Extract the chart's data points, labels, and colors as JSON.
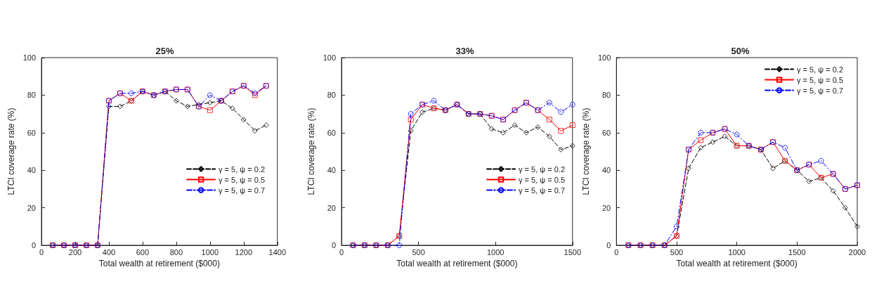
{
  "chart_data": [
    {
      "type": "line",
      "title": "25%",
      "xlabel": "Total wealth at retirement ($000)",
      "ylabel": "LTCI coverage rate (%)",
      "xlim": [
        0,
        1400
      ],
      "xticks": [
        0,
        200,
        400,
        600,
        800,
        1000,
        1200,
        1400
      ],
      "ylim": [
        0,
        100
      ],
      "yticks": [
        0,
        20,
        40,
        60,
        80,
        100
      ],
      "grid": false,
      "legend": "right",
      "x": [
        66.7,
        133.3,
        200,
        266.7,
        333.3,
        400,
        466.7,
        533.3,
        600,
        666.7,
        733.3,
        800,
        866.7,
        933.3,
        1000,
        1066.7,
        1133.3,
        1200,
        1266.7,
        1333.3
      ],
      "series": [
        {
          "name": "γ = 5, ψ = 0.2",
          "color": "#000000",
          "marker": "diamond",
          "line_style": "dashed",
          "values": [
            0,
            0,
            0,
            0,
            0,
            74,
            74,
            77,
            82,
            80,
            82,
            77,
            74,
            75,
            76,
            77,
            73,
            67,
            61,
            64
          ]
        },
        {
          "name": "γ = 5, ψ = 0.5",
          "color": "#ff0000",
          "marker": "square",
          "line_style": "solid",
          "values": [
            0,
            0,
            0,
            0,
            0,
            77,
            81,
            77,
            82,
            80,
            82,
            83,
            83,
            74,
            72,
            77,
            82,
            85,
            80,
            85
          ]
        },
        {
          "name": "γ = 5, ψ = 0.7",
          "color": "#0000ff",
          "marker": "circle",
          "line_style": "dashdot",
          "values": [
            0,
            0,
            0,
            0,
            0,
            77,
            81,
            81,
            82,
            80,
            82,
            83,
            83,
            74,
            80,
            77,
            82,
            85,
            81,
            85
          ]
        }
      ]
    },
    {
      "type": "line",
      "title": "33%",
      "xlabel": "Total wealth at retirement ($000)",
      "ylabel": "LTCI coverage rate (%)",
      "xlim": [
        0,
        1500
      ],
      "xticks": [
        0,
        500,
        1000,
        1500
      ],
      "ylim": [
        0,
        100
      ],
      "yticks": [
        0,
        20,
        40,
        60,
        80,
        100
      ],
      "grid": false,
      "legend": "right",
      "x": [
        75,
        150,
        225,
        300,
        375,
        450,
        525,
        600,
        675,
        750,
        825,
        900,
        975,
        1050,
        1125,
        1200,
        1275,
        1350,
        1425,
        1500
      ],
      "series": [
        {
          "name": "γ = 5, ψ = 0.2",
          "color": "#000000",
          "marker": "diamond",
          "line_style": "dashed",
          "values": [
            0,
            0,
            0,
            0,
            5,
            61,
            71,
            73,
            72,
            75,
            70,
            70,
            62,
            60,
            64,
            60,
            63,
            58,
            51,
            53
          ]
        },
        {
          "name": "γ = 5, ψ = 0.5",
          "color": "#ff0000",
          "marker": "square",
          "line_style": "solid",
          "values": [
            0,
            0,
            0,
            0,
            5,
            67,
            75,
            73,
            72,
            75,
            70,
            70,
            69,
            67,
            72,
            76,
            72,
            67,
            61,
            64
          ]
        },
        {
          "name": "γ = 5, ψ = 0.7",
          "color": "#0000ff",
          "marker": "circle",
          "line_style": "dashdot",
          "values": [
            0,
            0,
            0,
            0,
            0,
            70,
            75,
            77,
            72,
            75,
            70,
            70,
            69,
            67,
            72,
            76,
            72,
            76,
            71,
            75
          ]
        }
      ]
    },
    {
      "type": "line",
      "title": "50%",
      "xlabel": "Total wealth at retirement ($000)",
      "ylabel": "LTCI coverage rate (%)",
      "xlim": [
        0,
        2000
      ],
      "xticks": [
        0,
        500,
        1000,
        1500,
        2000
      ],
      "ylim": [
        0,
        100
      ],
      "yticks": [
        0,
        20,
        40,
        60,
        80,
        100
      ],
      "grid": false,
      "legend": "top right",
      "x": [
        100,
        200,
        300,
        400,
        500,
        600,
        700,
        800,
        900,
        1000,
        1100,
        1200,
        1300,
        1400,
        1500,
        1600,
        1700,
        1800,
        1900,
        2000
      ],
      "series": [
        {
          "name": "γ = 5, ψ = 0.2",
          "color": "#000000",
          "marker": "diamond",
          "line_style": "dashed",
          "values": [
            0,
            0,
            0,
            0,
            5,
            41,
            52,
            55,
            58,
            53,
            53,
            51,
            41,
            45,
            40,
            34,
            36,
            29,
            20,
            10
          ]
        },
        {
          "name": "γ = 5, ψ = 0.5",
          "color": "#ff0000",
          "marker": "square",
          "line_style": "solid",
          "values": [
            0,
            0,
            0,
            0,
            5,
            51,
            56,
            60,
            62,
            53,
            53,
            51,
            55,
            45,
            40,
            43,
            36,
            38,
            30,
            32
          ]
        },
        {
          "name": "γ = 5, ψ = 0.7",
          "color": "#0000ff",
          "marker": "circle",
          "line_style": "dashdot",
          "values": [
            0,
            0,
            0,
            0,
            10,
            51,
            60,
            60,
            62,
            59,
            53,
            51,
            55,
            52,
            40,
            43,
            45,
            38,
            30,
            32
          ]
        }
      ]
    }
  ]
}
